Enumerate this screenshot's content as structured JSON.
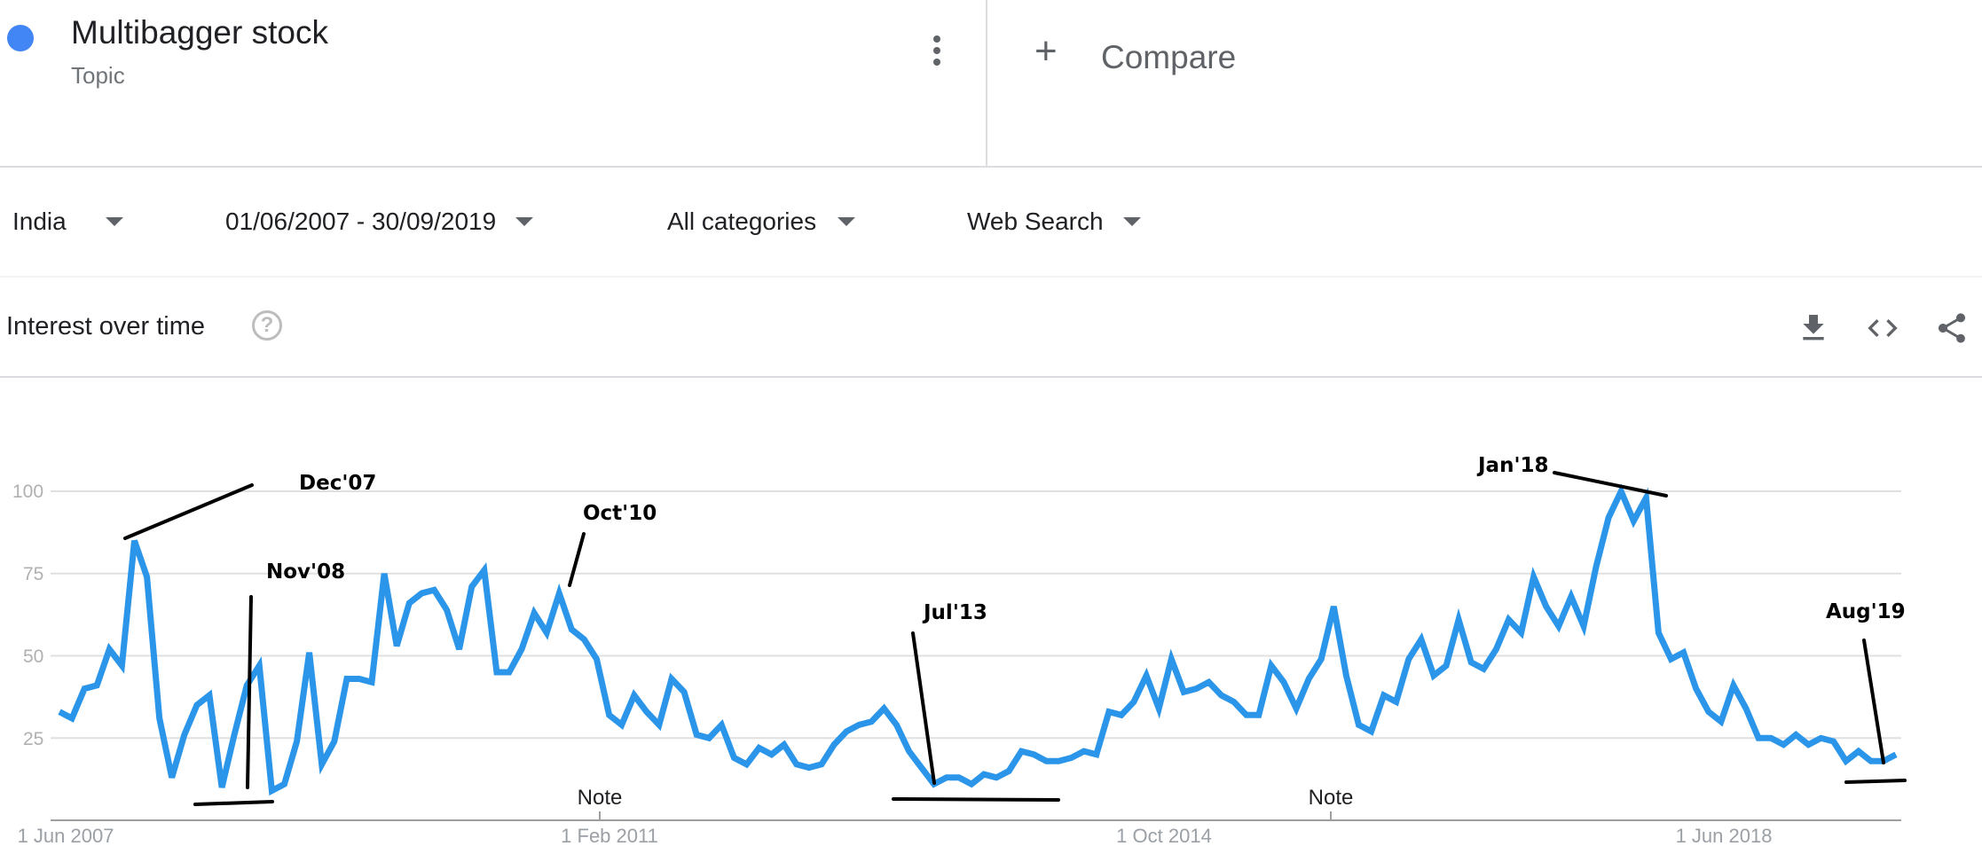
{
  "header": {
    "term": "Multibagger stock",
    "term_type": "Topic",
    "term_color": "#4285f4",
    "menu_icon": "more-vert-icon",
    "compare_icon": "plus-icon",
    "compare_label": "Compare"
  },
  "filters": {
    "region": "India",
    "date_range": "01/06/2007 - 30/09/2019",
    "category": "All categories",
    "search_type": "Web Search"
  },
  "section": {
    "title": "Interest over time",
    "help_icon": "help-circle-icon",
    "help_glyph": "?",
    "tools": [
      "download-icon",
      "embed-code-icon",
      "share-icon"
    ]
  },
  "chart_data": {
    "type": "line",
    "title": "",
    "xlabel": "",
    "ylabel": "",
    "ylim": [
      0,
      100
    ],
    "yticks": [
      "25",
      "50",
      "75",
      "100"
    ],
    "grid": true,
    "line_color": "#2b95e9",
    "x_start": "Jun 2007",
    "x_end": "Sep 2019",
    "x_frequency": "monthly",
    "xtick_labels": [
      "1 Jun 2007",
      "1 Feb 2011",
      "1 Oct 2014",
      "1 Jun 2018"
    ],
    "notes": [
      "Note",
      "Note"
    ],
    "series": [
      {
        "values": [
          33,
          31,
          40,
          41,
          52,
          47,
          85,
          74,
          31,
          13,
          26,
          35,
          38,
          10,
          26,
          41,
          47,
          9,
          11,
          24,
          51,
          17,
          24,
          43,
          43,
          42,
          75,
          53,
          66,
          69,
          70,
          64,
          52,
          71,
          76,
          45,
          45,
          52,
          63,
          57,
          69,
          58,
          55,
          49,
          32,
          29,
          38,
          33,
          29,
          43,
          39,
          26,
          25,
          29,
          19,
          17,
          22,
          20,
          23,
          17,
          16,
          17,
          23,
          27,
          29,
          30,
          34,
          29,
          21,
          16,
          11,
          13,
          13,
          11,
          14,
          13,
          15,
          21,
          20,
          18,
          18,
          19,
          21,
          20,
          33,
          32,
          36,
          44,
          34,
          49,
          39,
          40,
          42,
          38,
          36,
          32,
          32,
          47,
          42,
          34,
          43,
          49,
          65,
          44,
          29,
          27,
          38,
          36,
          49,
          55,
          44,
          47,
          61,
          48,
          46,
          52,
          61,
          57,
          74,
          65,
          59,
          68,
          59,
          77,
          92,
          100,
          91,
          98,
          57,
          49,
          51,
          40,
          33,
          30,
          41,
          34,
          25,
          25,
          23,
          26,
          23,
          25,
          24,
          18,
          21,
          18,
          18,
          20
        ]
      }
    ],
    "annotations": [
      "Dec'07",
      "Nov'08",
      "Oct'10",
      "Jul'13",
      "Jan'18",
      "Aug'19"
    ]
  }
}
